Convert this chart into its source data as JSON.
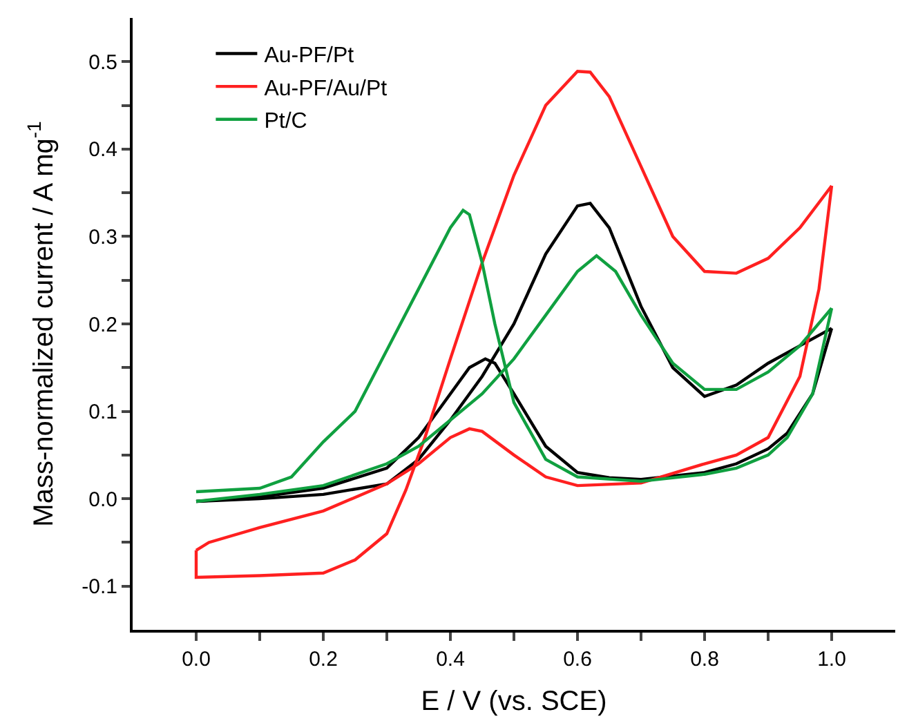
{
  "chart_data": {
    "type": "line",
    "xlabel": "E / V (vs. SCE)",
    "ylabel": "Mass-normalized current / A mg$^{-1}$",
    "xlim": [
      -0.1,
      1.1
    ],
    "ylim": [
      -0.15,
      0.55
    ],
    "xticks": [
      {
        "value": 0,
        "label": "0.0"
      },
      {
        "value": 0.1,
        "label": null
      },
      0.2,
      {
        "value": 0.3,
        "label": null
      },
      0.4,
      {
        "value": 0.5,
        "label": null
      },
      0.6,
      {
        "value": 0.7,
        "label": null
      },
      0.8,
      {
        "value": 0.9,
        "label": null
      },
      {
        "value": 1,
        "label": "1.0"
      }
    ],
    "yticks": [
      -0.1,
      {
        "value": -0.05,
        "label": null
      },
      {
        "value": 0,
        "label": "0.0"
      },
      {
        "value": 0.05,
        "label": null
      },
      0.1,
      {
        "value": 0.15,
        "label": null
      },
      0.2,
      {
        "value": 0.25,
        "label": null
      },
      0.3,
      {
        "value": 0.35,
        "label": null
      },
      0.4,
      {
        "value": 0.45,
        "label": null
      },
      0.5
    ],
    "legend": "top left",
    "marker": "none",
    "line_style": "solid",
    "series": [
      {
        "name": "Au-PF/Pt",
        "color": "#000000",
        "x": [
          0,
          0.1,
          0.2,
          0.3,
          0.35,
          0.4,
          0.45,
          0.5,
          0.55,
          0.6,
          0.62,
          0.65,
          0.7,
          0.75,
          0.8,
          0.85,
          0.9,
          0.95,
          1.0
        ],
        "values": [
          -0.003,
          0.0,
          0.005,
          0.017,
          0.045,
          0.09,
          0.14,
          0.2,
          0.28,
          0.335,
          0.338,
          0.31,
          0.22,
          0.15,
          0.117,
          0.13,
          0.155,
          0.175,
          0.195
        ]
      },
      {
        "color": "#000000",
        "x": [
          0,
          0.1,
          0.2,
          0.3,
          0.35,
          0.4,
          0.43,
          0.455,
          0.47,
          0.5,
          0.55,
          0.6,
          0.65,
          0.7,
          0.8,
          0.85,
          0.9,
          0.93,
          0.97,
          1.0
        ],
        "values": [
          -0.003,
          0.002,
          0.012,
          0.035,
          0.07,
          0.12,
          0.15,
          0.16,
          0.155,
          0.12,
          0.06,
          0.03,
          0.024,
          0.022,
          0.03,
          0.04,
          0.057,
          0.075,
          0.12,
          0.195
        ]
      },
      {
        "name": "Au-PF/Au/Pt",
        "color": "#ff2020",
        "x": [
          0,
          0,
          0.1,
          0.2,
          0.25,
          0.3,
          0.33,
          0.36,
          0.4,
          0.45,
          0.5,
          0.55,
          0.6,
          0.62,
          0.65,
          0.7,
          0.75,
          0.8,
          0.85,
          0.9,
          0.95,
          1.0
        ],
        "values": [
          -0.059,
          -0.09,
          -0.088,
          -0.085,
          -0.07,
          -0.04,
          0.01,
          0.07,
          0.16,
          0.27,
          0.37,
          0.45,
          0.489,
          0.488,
          0.46,
          0.38,
          0.3,
          0.26,
          0.258,
          0.275,
          0.31,
          0.358
        ]
      },
      {
        "color": "#ff2020",
        "x": [
          0.0,
          0.02,
          0.1,
          0.2,
          0.3,
          0.35,
          0.4,
          0.43,
          0.45,
          0.5,
          0.55,
          0.6,
          0.7,
          0.8,
          0.85,
          0.9,
          0.95,
          0.98,
          1.0
        ],
        "values": [
          -0.059,
          -0.05,
          -0.033,
          -0.014,
          0.017,
          0.04,
          0.07,
          0.08,
          0.077,
          0.05,
          0.025,
          0.015,
          0.018,
          0.04,
          0.05,
          0.07,
          0.14,
          0.24,
          0.358
        ]
      },
      {
        "name": "Pt/C",
        "color": "#10a040",
        "x": [
          0,
          0.1,
          0.2,
          0.3,
          0.35,
          0.4,
          0.45,
          0.5,
          0.55,
          0.6,
          0.63,
          0.66,
          0.7,
          0.75,
          0.8,
          0.85,
          0.9,
          0.95,
          1.0
        ],
        "values": [
          -0.003,
          0.005,
          0.015,
          0.04,
          0.06,
          0.09,
          0.12,
          0.16,
          0.21,
          0.26,
          0.278,
          0.26,
          0.21,
          0.155,
          0.125,
          0.125,
          0.145,
          0.175,
          0.218
        ]
      },
      {
        "color": "#10a040",
        "x": [
          0,
          0.1,
          0.15,
          0.2,
          0.25,
          0.3,
          0.35,
          0.4,
          0.42,
          0.43,
          0.45,
          0.47,
          0.5,
          0.55,
          0.6,
          0.7,
          0.8,
          0.85,
          0.9,
          0.93,
          0.97,
          1.0
        ],
        "values": [
          0.008,
          0.012,
          0.025,
          0.065,
          0.1,
          0.17,
          0.24,
          0.31,
          0.33,
          0.325,
          0.27,
          0.2,
          0.11,
          0.045,
          0.025,
          0.02,
          0.028,
          0.035,
          0.05,
          0.07,
          0.12,
          0.218
        ]
      }
    ]
  }
}
